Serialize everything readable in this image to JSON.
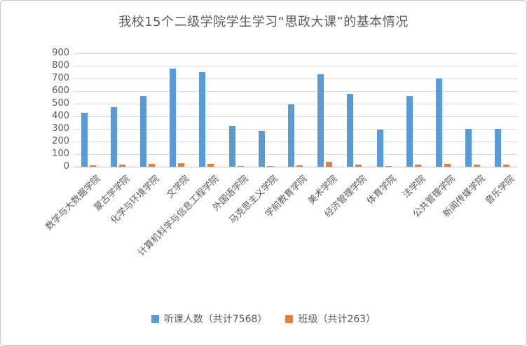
{
  "window": {
    "background": "#ffffff",
    "border_color": "#c9c9c9"
  },
  "colors": {
    "title_text": "#595959",
    "axis_text": "#595959",
    "gridline": "#d9d9d9",
    "series_blue": "#5B9BD5",
    "series_orange": "#ED7D31"
  },
  "chart_data": {
    "type": "bar",
    "title": "我校15个二级学院学生学习“思政大课”的基本情况",
    "categories": [
      "数学与大数据学院",
      "蒙古学学院",
      "化学与环境学院",
      "文学院",
      "计算机科学与信息工程学院",
      "外国语学院",
      "马克思主义学院",
      "学前教育学院",
      "美术学院",
      "经济管理学院",
      "体育学院",
      "法学院",
      "公共管理学院",
      "新闻传媒学院",
      "音乐学院"
    ],
    "series": [
      {
        "name": "听课人数（共计7568）",
        "color": "#5B9BD5",
        "total": 7568,
        "values": [
          430,
          475,
          560,
          780,
          750,
          324,
          283,
          496,
          735,
          580,
          297,
          560,
          700,
          298,
          300
        ]
      },
      {
        "name": "班级（共计263）",
        "color": "#ED7D31",
        "total": 263,
        "values": [
          12,
          16,
          24,
          28,
          22,
          8,
          8,
          9,
          40,
          16,
          8,
          16,
          23,
          14,
          19
        ]
      }
    ],
    "ylim": [
      0,
      900
    ],
    "yticks": [
      0,
      100,
      200,
      300,
      400,
      500,
      600,
      700,
      800,
      900
    ],
    "grid": true,
    "legend_position": "bottom"
  }
}
